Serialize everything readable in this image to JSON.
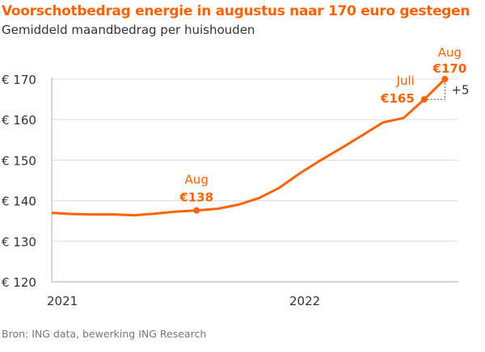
{
  "chart_data": {
    "type": "line",
    "title": "Voorschotbedrag energie in augustus naar 170 euro gestegen",
    "subtitle": "Gemiddeld maandbedrag per huishouden",
    "source": "Bron: ING data, bewerking ING Research",
    "x": [
      "2021-01",
      "2021-02",
      "2021-03",
      "2021-04",
      "2021-05",
      "2021-06",
      "2021-07",
      "2021-08",
      "2021-09",
      "2021-10",
      "2021-11",
      "2021-12",
      "2022-01",
      "2022-02",
      "2022-03",
      "2022-04",
      "2022-05",
      "2022-06",
      "2022-07",
      "2022-08"
    ],
    "values": [
      137.0,
      136.7,
      136.6,
      136.6,
      136.4,
      136.8,
      137.3,
      137.6,
      138.0,
      139.0,
      140.6,
      143.2,
      146.8,
      150.0,
      153.0,
      156.1,
      159.3,
      160.4,
      165,
      170
    ],
    "x_tick_labels": [
      "2021",
      "2022"
    ],
    "y_tick_labels": [
      "€ 120",
      "€ 130",
      "€ 140",
      "€ 150",
      "€ 160",
      "€ 170"
    ],
    "y_ticks": [
      120,
      130,
      140,
      150,
      160,
      170
    ],
    "ylim": [
      120,
      170
    ],
    "grid": true,
    "color": "#ff6200",
    "annotations": [
      {
        "month": "Aug",
        "value": "€138"
      },
      {
        "month": "Juli",
        "value": "€165"
      },
      {
        "month": "Aug",
        "value": "€170"
      },
      {
        "delta": "+5"
      }
    ]
  }
}
